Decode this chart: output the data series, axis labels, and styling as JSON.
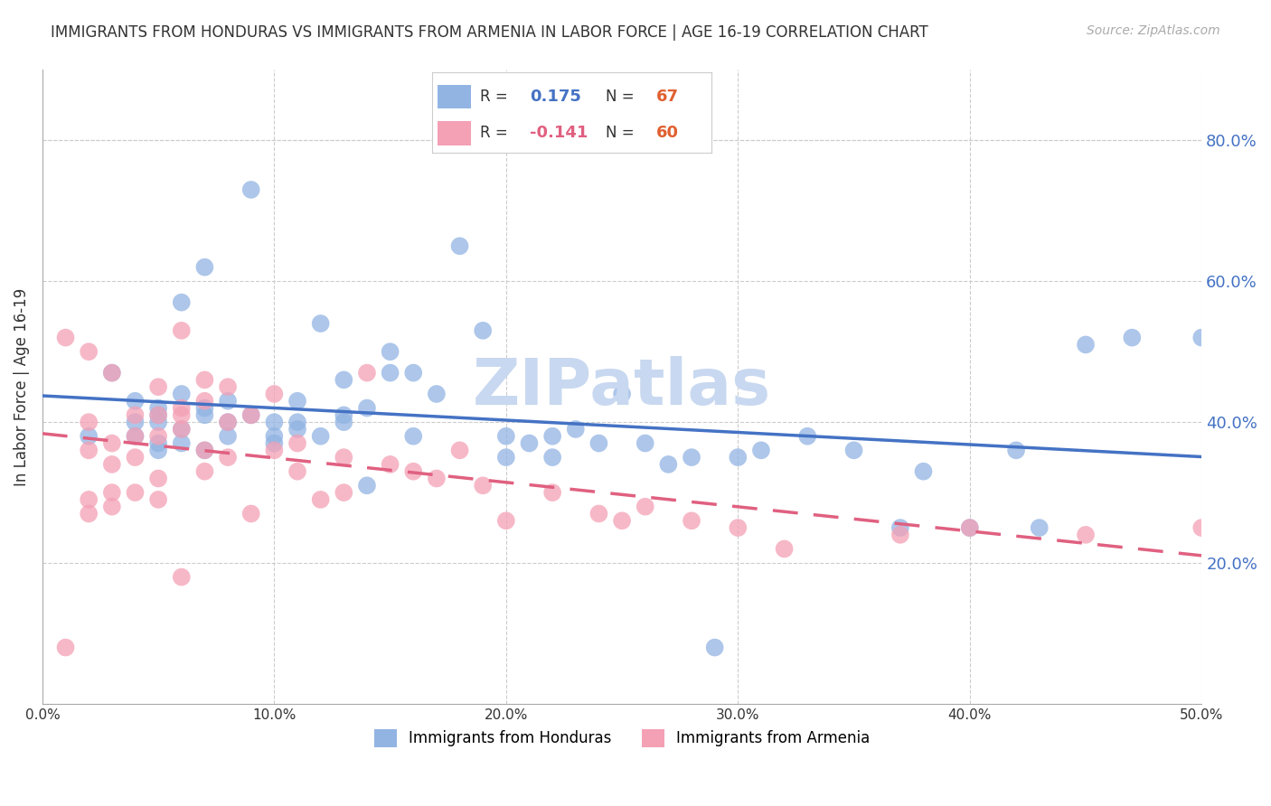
{
  "title": "IMMIGRANTS FROM HONDURAS VS IMMIGRANTS FROM ARMENIA IN LABOR FORCE | AGE 16-19 CORRELATION CHART",
  "source": "Source: ZipAtlas.com",
  "xlabel": "",
  "ylabel": "In Labor Force | Age 16-19",
  "xlim": [
    0.0,
    0.5
  ],
  "ylim": [
    0.0,
    0.9
  ],
  "xticks": [
    0.0,
    0.1,
    0.2,
    0.3,
    0.4,
    0.5
  ],
  "yticks_right": [
    0.2,
    0.4,
    0.6,
    0.8
  ],
  "ytick_labels_right": [
    "20.0%",
    "40.0%",
    "60.0%",
    "80.0%"
  ],
  "xtick_labels": [
    "0.0%",
    "10.0%",
    "20.0%",
    "30.0%",
    "40.0%",
    "50.0%"
  ],
  "legend_r1": "R =  0.175",
  "legend_n1": "N = 67",
  "legend_r2": "R = -0.141",
  "legend_n2": "N = 60",
  "color_honduras": "#92b4e3",
  "color_armenia": "#f4a0b5",
  "color_line_honduras": "#4472c4",
  "color_line_armenia": "#e06080",
  "watermark": "ZIPatlas",
  "watermark_color": "#c8d8f0",
  "honduras_x": [
    0.02,
    0.03,
    0.04,
    0.04,
    0.04,
    0.05,
    0.05,
    0.05,
    0.05,
    0.05,
    0.06,
    0.06,
    0.06,
    0.06,
    0.07,
    0.07,
    0.07,
    0.07,
    0.08,
    0.08,
    0.08,
    0.09,
    0.09,
    0.1,
    0.1,
    0.1,
    0.11,
    0.11,
    0.11,
    0.12,
    0.12,
    0.13,
    0.13,
    0.13,
    0.14,
    0.14,
    0.15,
    0.15,
    0.16,
    0.16,
    0.17,
    0.18,
    0.19,
    0.2,
    0.2,
    0.21,
    0.22,
    0.22,
    0.23,
    0.24,
    0.25,
    0.26,
    0.27,
    0.28,
    0.29,
    0.3,
    0.31,
    0.33,
    0.35,
    0.37,
    0.38,
    0.4,
    0.42,
    0.45,
    0.47,
    0.5,
    0.43
  ],
  "honduras_y": [
    0.38,
    0.47,
    0.4,
    0.43,
    0.38,
    0.42,
    0.4,
    0.41,
    0.36,
    0.37,
    0.39,
    0.57,
    0.44,
    0.37,
    0.41,
    0.42,
    0.36,
    0.62,
    0.43,
    0.4,
    0.38,
    0.73,
    0.41,
    0.38,
    0.4,
    0.37,
    0.43,
    0.4,
    0.39,
    0.38,
    0.54,
    0.4,
    0.41,
    0.46,
    0.42,
    0.31,
    0.5,
    0.47,
    0.47,
    0.38,
    0.44,
    0.65,
    0.53,
    0.38,
    0.35,
    0.37,
    0.38,
    0.35,
    0.39,
    0.37,
    0.44,
    0.37,
    0.34,
    0.35,
    0.08,
    0.35,
    0.36,
    0.38,
    0.36,
    0.25,
    0.33,
    0.25,
    0.36,
    0.51,
    0.52,
    0.52,
    0.25
  ],
  "armenia_x": [
    0.01,
    0.01,
    0.02,
    0.02,
    0.02,
    0.02,
    0.02,
    0.03,
    0.03,
    0.03,
    0.03,
    0.03,
    0.04,
    0.04,
    0.04,
    0.04,
    0.05,
    0.05,
    0.05,
    0.05,
    0.05,
    0.06,
    0.06,
    0.06,
    0.06,
    0.07,
    0.07,
    0.07,
    0.07,
    0.08,
    0.08,
    0.08,
    0.09,
    0.09,
    0.1,
    0.1,
    0.11,
    0.11,
    0.12,
    0.13,
    0.13,
    0.14,
    0.15,
    0.16,
    0.17,
    0.18,
    0.19,
    0.2,
    0.22,
    0.24,
    0.25,
    0.26,
    0.28,
    0.3,
    0.32,
    0.37,
    0.4,
    0.45,
    0.5,
    0.06
  ],
  "armenia_y": [
    0.52,
    0.08,
    0.5,
    0.4,
    0.36,
    0.29,
    0.27,
    0.47,
    0.37,
    0.34,
    0.3,
    0.28,
    0.41,
    0.38,
    0.35,
    0.3,
    0.45,
    0.41,
    0.38,
    0.32,
    0.29,
    0.53,
    0.42,
    0.41,
    0.39,
    0.46,
    0.43,
    0.36,
    0.33,
    0.45,
    0.4,
    0.35,
    0.41,
    0.27,
    0.44,
    0.36,
    0.37,
    0.33,
    0.29,
    0.35,
    0.3,
    0.47,
    0.34,
    0.33,
    0.32,
    0.36,
    0.31,
    0.26,
    0.3,
    0.27,
    0.26,
    0.28,
    0.26,
    0.25,
    0.22,
    0.24,
    0.25,
    0.24,
    0.25,
    0.18
  ],
  "background_color": "#ffffff",
  "grid_color": "#cccccc"
}
